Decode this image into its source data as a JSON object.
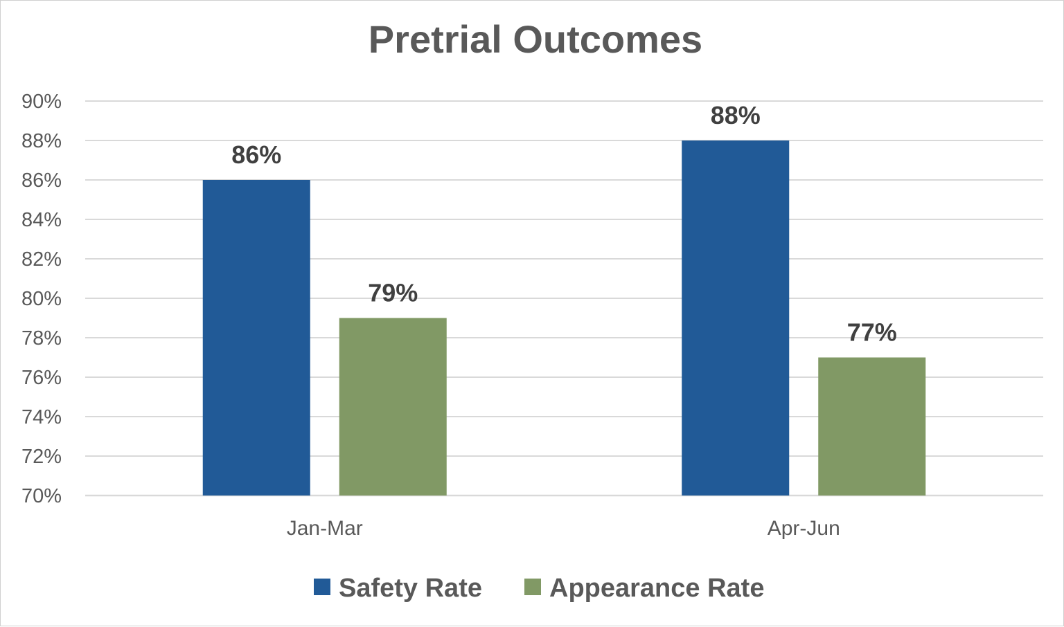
{
  "chart_data": {
    "type": "bar",
    "title": "Pretrial Outcomes",
    "xlabel": "",
    "ylabel": "",
    "categories": [
      "Jan-Mar",
      "Apr-Jun"
    ],
    "series": [
      {
        "name": "Safety Rate",
        "values": [
          86,
          88
        ],
        "labels": [
          "86%",
          "88%"
        ],
        "color": "#215a97"
      },
      {
        "name": "Appearance Rate",
        "values": [
          79,
          77
        ],
        "labels": [
          "79%",
          "77%"
        ],
        "color": "#819965"
      }
    ],
    "ylim": [
      70,
      90
    ],
    "yticks": [
      70,
      72,
      74,
      76,
      78,
      80,
      82,
      84,
      86,
      88,
      90
    ],
    "ytick_labels": [
      "70%",
      "72%",
      "74%",
      "76%",
      "78%",
      "80%",
      "82%",
      "84%",
      "86%",
      "88%",
      "90%"
    ],
    "grid": true,
    "legend_position": "bottom"
  }
}
